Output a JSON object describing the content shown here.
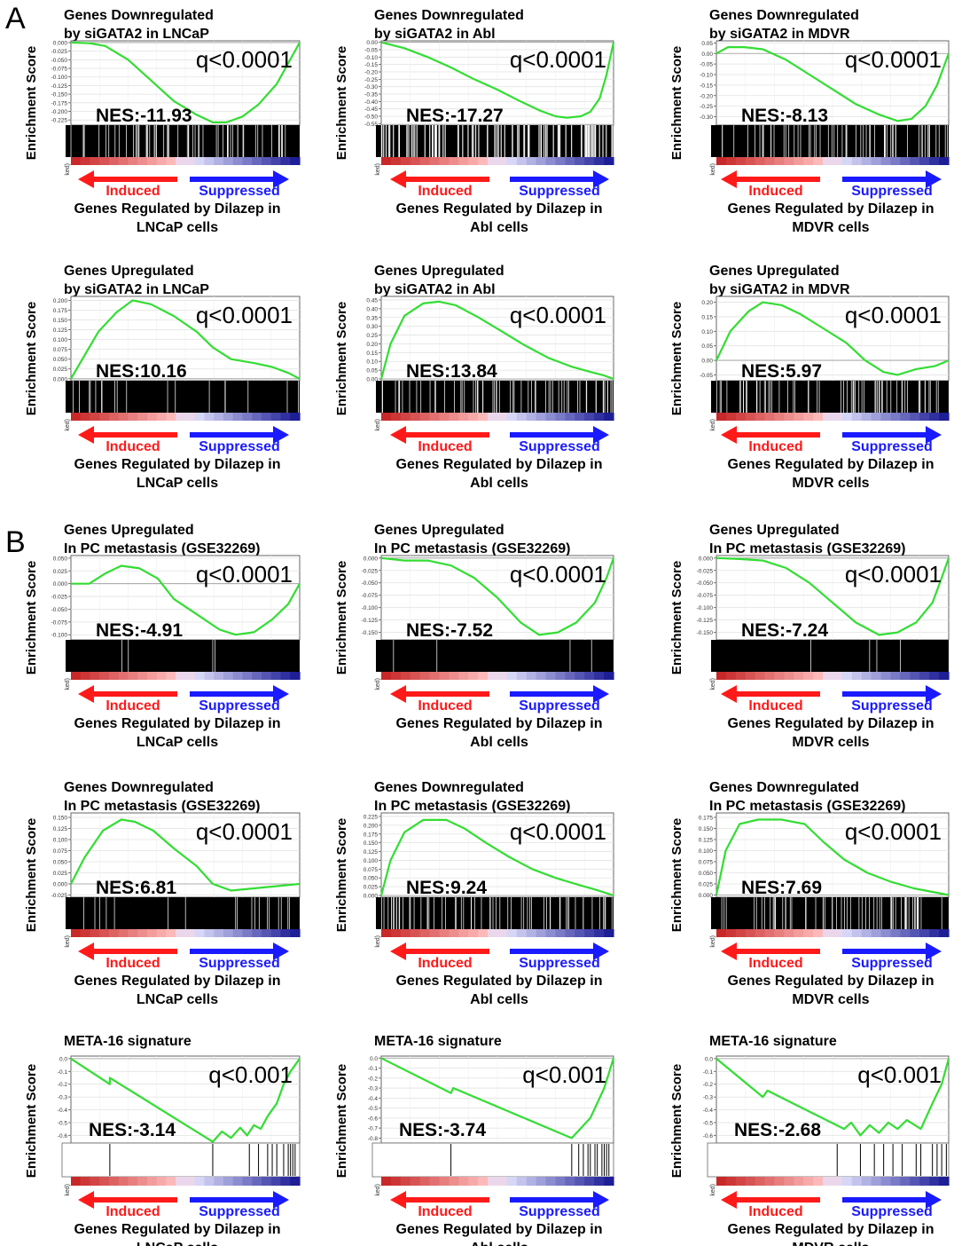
{
  "figure": {
    "section_labels": [
      "A",
      "B"
    ],
    "ylabel": "Enrichment Score",
    "rank_axis_stub": "ked)",
    "arrow_left_label": "Induced",
    "arrow_right_label": "Suppressed",
    "colors": {
      "curve": "#33dd33",
      "induced": "#ff1a1a",
      "suppressed": "#1a1aff",
      "hit_band": "#000000",
      "background": "#ffffff"
    }
  },
  "chart_data": [
    {
      "type": "line",
      "title_lines": [
        "Genes Downregulated",
        "by siGATA2 in LNCaP"
      ],
      "xlabel_lines": [
        "Genes Regulated by Dilazep in",
        "LNCaP cells"
      ],
      "ylabel": "Enrichment Score",
      "q": "q<0.0001",
      "nes": "NES:-11.93",
      "y_ticks": [
        "0.000",
        "-0.025",
        "-0.050",
        "-0.075",
        "-0.100",
        "-0.125",
        "-0.150",
        "-0.175",
        "-0.200",
        "-0.225"
      ],
      "ylim": [
        -0.24,
        0.005
      ],
      "curve": [
        [
          0,
          0
        ],
        [
          0.08,
          -0.002
        ],
        [
          0.15,
          -0.01
        ],
        [
          0.25,
          -0.05
        ],
        [
          0.35,
          -0.11
        ],
        [
          0.45,
          -0.17
        ],
        [
          0.55,
          -0.21
        ],
        [
          0.62,
          -0.232
        ],
        [
          0.68,
          -0.232
        ],
        [
          0.75,
          -0.215
        ],
        [
          0.82,
          -0.18
        ],
        [
          0.9,
          -0.12
        ],
        [
          0.95,
          -0.06
        ],
        [
          1,
          0
        ]
      ],
      "hits": "dense"
    },
    {
      "type": "line",
      "title_lines": [
        "Genes Downregulated",
        "by siGATA2 in Abl"
      ],
      "xlabel_lines": [
        "Genes Regulated by Dilazep in",
        "Abl cells"
      ],
      "ylabel": "Enrichment Score",
      "q": "q<0.0001",
      "nes": "NES:-17.27",
      "y_ticks": [
        "0.00",
        "-0.05",
        "-0.10",
        "-0.15",
        "-0.20",
        "-0.25",
        "-0.30",
        "-0.35",
        "-0.40",
        "-0.45",
        "-0.50",
        "-0.55"
      ],
      "ylim": [
        -0.56,
        0.01
      ],
      "curve": [
        [
          0,
          0
        ],
        [
          0.1,
          -0.04
        ],
        [
          0.2,
          -0.1
        ],
        [
          0.3,
          -0.17
        ],
        [
          0.4,
          -0.25
        ],
        [
          0.5,
          -0.32
        ],
        [
          0.6,
          -0.4
        ],
        [
          0.68,
          -0.46
        ],
        [
          0.75,
          -0.5
        ],
        [
          0.8,
          -0.51
        ],
        [
          0.86,
          -0.5
        ],
        [
          0.9,
          -0.47
        ],
        [
          0.94,
          -0.38
        ],
        [
          0.97,
          -0.22
        ],
        [
          1,
          0
        ]
      ],
      "hits": "sparse"
    },
    {
      "type": "line",
      "title_lines": [
        "Genes Downregulated",
        "by siGATA2 in MDVR"
      ],
      "xlabel_lines": [
        "Genes Regulated by Dilazep in",
        "MDVR cells"
      ],
      "ylabel": "Enrichment Score",
      "q": "q<0.0001",
      "nes": "NES:-8.13",
      "y_ticks": [
        "0.05",
        "0.00",
        "-0.05",
        "-0.10",
        "-0.15",
        "-0.20",
        "-0.25",
        "-0.30"
      ],
      "ylim": [
        -0.34,
        0.06
      ],
      "curve": [
        [
          0,
          0.0
        ],
        [
          0.05,
          0.03
        ],
        [
          0.12,
          0.03
        ],
        [
          0.2,
          0.02
        ],
        [
          0.3,
          -0.03
        ],
        [
          0.4,
          -0.1
        ],
        [
          0.5,
          -0.17
        ],
        [
          0.6,
          -0.24
        ],
        [
          0.7,
          -0.29
        ],
        [
          0.78,
          -0.32
        ],
        [
          0.84,
          -0.31
        ],
        [
          0.9,
          -0.25
        ],
        [
          0.95,
          -0.15
        ],
        [
          1,
          0.0
        ]
      ],
      "hits": "dense"
    },
    {
      "type": "line",
      "title_lines": [
        "Genes Upregulated",
        "by siGATA2 in LNCaP"
      ],
      "xlabel_lines": [
        "Genes Regulated by Dilazep in",
        "LNCaP cells"
      ],
      "ylabel": "Enrichment Score",
      "q": "q<0.0001",
      "nes": "NES:10.16",
      "y_ticks": [
        "0.200",
        "0.175",
        "0.150",
        "0.125",
        "0.100",
        "0.075",
        "0.050",
        "0.025",
        "0.000"
      ],
      "ylim": [
        -0.005,
        0.21
      ],
      "curve": [
        [
          0,
          0
        ],
        [
          0.05,
          0.05
        ],
        [
          0.12,
          0.12
        ],
        [
          0.2,
          0.17
        ],
        [
          0.27,
          0.2
        ],
        [
          0.35,
          0.19
        ],
        [
          0.45,
          0.16
        ],
        [
          0.55,
          0.12
        ],
        [
          0.62,
          0.08
        ],
        [
          0.7,
          0.05
        ],
        [
          0.8,
          0.04
        ],
        [
          0.88,
          0.03
        ],
        [
          0.95,
          0.015
        ],
        [
          1,
          0
        ]
      ],
      "hits": "medium"
    },
    {
      "type": "line",
      "title_lines": [
        "Genes Upregulated",
        "by siGATA2 in Abl"
      ],
      "xlabel_lines": [
        "Genes Regulated by Dilazep in",
        "Abl cells"
      ],
      "ylabel": "Enrichment Score",
      "q": "q<0.0001",
      "nes": "NES:13.84",
      "y_ticks": [
        "0.45",
        "0.40",
        "0.35",
        "0.30",
        "0.25",
        "0.20",
        "0.15",
        "0.10",
        "0.05",
        "0.00"
      ],
      "ylim": [
        -0.01,
        0.47
      ],
      "curve": [
        [
          0,
          0
        ],
        [
          0.04,
          0.2
        ],
        [
          0.1,
          0.36
        ],
        [
          0.18,
          0.43
        ],
        [
          0.25,
          0.44
        ],
        [
          0.32,
          0.42
        ],
        [
          0.42,
          0.35
        ],
        [
          0.52,
          0.27
        ],
        [
          0.62,
          0.19
        ],
        [
          0.72,
          0.12
        ],
        [
          0.82,
          0.07
        ],
        [
          0.9,
          0.04
        ],
        [
          0.96,
          0.02
        ],
        [
          1,
          0
        ]
      ],
      "hits": "dense"
    },
    {
      "type": "line",
      "title_lines": [
        "Genes Upregulated",
        "by siGATA2 in MDVR"
      ],
      "xlabel_lines": [
        "Genes Regulated by Dilazep in",
        "MDVR cells"
      ],
      "ylabel": "Enrichment Score",
      "q": "q<0.0001",
      "nes": "NES:5.97",
      "y_ticks": [
        "0.20",
        "0.15",
        "0.10",
        "0.05",
        "0.00",
        "-0.05"
      ],
      "ylim": [
        -0.07,
        0.22
      ],
      "curve": [
        [
          0,
          0
        ],
        [
          0.06,
          0.1
        ],
        [
          0.14,
          0.17
        ],
        [
          0.2,
          0.2
        ],
        [
          0.28,
          0.19
        ],
        [
          0.36,
          0.16
        ],
        [
          0.46,
          0.11
        ],
        [
          0.56,
          0.06
        ],
        [
          0.64,
          0.0
        ],
        [
          0.72,
          -0.04
        ],
        [
          0.78,
          -0.05
        ],
        [
          0.86,
          -0.03
        ],
        [
          0.94,
          -0.02
        ],
        [
          1,
          0
        ]
      ],
      "hits": "dense"
    },
    {
      "type": "line",
      "title_lines": [
        "Genes Upregulated",
        "In PC metastasis (GSE32269)"
      ],
      "xlabel_lines": [
        "Genes Regulated by Dilazep in",
        "LNCaP cells"
      ],
      "ylabel": "Enrichment Score",
      "q": "q<0.0001",
      "nes": "NES:-4.91",
      "y_ticks": [
        "0.050",
        "0.025",
        "0.000",
        "-0.025",
        "-0.050",
        "-0.075",
        "-0.100"
      ],
      "ylim": [
        -0.11,
        0.055
      ],
      "curve": [
        [
          0,
          0
        ],
        [
          0.08,
          0.0
        ],
        [
          0.15,
          0.02
        ],
        [
          0.22,
          0.035
        ],
        [
          0.3,
          0.03
        ],
        [
          0.38,
          0.01
        ],
        [
          0.45,
          -0.03
        ],
        [
          0.55,
          -0.06
        ],
        [
          0.65,
          -0.09
        ],
        [
          0.72,
          -0.1
        ],
        [
          0.8,
          -0.095
        ],
        [
          0.88,
          -0.07
        ],
        [
          0.95,
          -0.04
        ],
        [
          1,
          0
        ]
      ],
      "hits": "few"
    },
    {
      "type": "line",
      "title_lines": [
        "Genes Upregulated",
        "In PC metastasis (GSE32269)"
      ],
      "xlabel_lines": [
        "Genes Regulated by Dilazep in",
        "Abl cells"
      ],
      "ylabel": "Enrichment Score",
      "q": "q<0.0001",
      "nes": "NES:-7.52",
      "y_ticks": [
        "0.000",
        "-0.025",
        "-0.050",
        "-0.075",
        "-0.100",
        "-0.125",
        "-0.150"
      ],
      "ylim": [
        -0.165,
        0.005
      ],
      "curve": [
        [
          0,
          0
        ],
        [
          0.1,
          -0.005
        ],
        [
          0.2,
          -0.005
        ],
        [
          0.3,
          -0.015
        ],
        [
          0.4,
          -0.04
        ],
        [
          0.5,
          -0.08
        ],
        [
          0.6,
          -0.13
        ],
        [
          0.68,
          -0.155
        ],
        [
          0.76,
          -0.15
        ],
        [
          0.84,
          -0.13
        ],
        [
          0.92,
          -0.09
        ],
        [
          0.97,
          -0.04
        ],
        [
          1,
          0
        ]
      ],
      "hits": "few"
    },
    {
      "type": "line",
      "title_lines": [
        "Genes Upregulated",
        "In PC metastasis (GSE32269)"
      ],
      "xlabel_lines": [
        "Genes Regulated by Dilazep in",
        "MDVR cells"
      ],
      "ylabel": "Enrichment Score",
      "q": "q<0.0001",
      "nes": "NES:-7.24",
      "y_ticks": [
        "0.000",
        "-0.025",
        "-0.050",
        "-0.075",
        "-0.100",
        "-0.125",
        "-0.150"
      ],
      "ylim": [
        -0.165,
        0.005
      ],
      "curve": [
        [
          0,
          0
        ],
        [
          0.1,
          -0.002
        ],
        [
          0.2,
          -0.005
        ],
        [
          0.3,
          -0.02
        ],
        [
          0.4,
          -0.05
        ],
        [
          0.5,
          -0.09
        ],
        [
          0.6,
          -0.13
        ],
        [
          0.7,
          -0.155
        ],
        [
          0.78,
          -0.15
        ],
        [
          0.86,
          -0.13
        ],
        [
          0.93,
          -0.09
        ],
        [
          0.97,
          -0.04
        ],
        [
          1,
          0
        ]
      ],
      "hits": "few"
    },
    {
      "type": "line",
      "title_lines": [
        "Genes Downregulated",
        "In PC metastasis (GSE32269)"
      ],
      "xlabel_lines": [
        "Genes Regulated by Dilazep in",
        "LNCaP cells"
      ],
      "ylabel": "Enrichment Score",
      "q": "q<0.0001",
      "nes": "NES:6.81",
      "y_ticks": [
        "0.150",
        "0.125",
        "0.100",
        "0.075",
        "0.050",
        "0.025",
        "0.000",
        "-0.025"
      ],
      "ylim": [
        -0.03,
        0.16
      ],
      "curve": [
        [
          0,
          0
        ],
        [
          0.06,
          0.06
        ],
        [
          0.14,
          0.12
        ],
        [
          0.22,
          0.145
        ],
        [
          0.28,
          0.14
        ],
        [
          0.36,
          0.12
        ],
        [
          0.45,
          0.08
        ],
        [
          0.55,
          0.04
        ],
        [
          0.62,
          0.0
        ],
        [
          0.7,
          -0.015
        ],
        [
          0.8,
          -0.01
        ],
        [
          0.9,
          -0.005
        ],
        [
          1,
          0
        ]
      ],
      "hits": "medium"
    },
    {
      "type": "line",
      "title_lines": [
        "Genes Downregulated",
        "In PC metastasis (GSE32269)"
      ],
      "xlabel_lines": [
        "Genes Regulated by Dilazep in",
        "Abl cells"
      ],
      "ylabel": "Enrichment Score",
      "q": "q<0.0001",
      "nes": "NES:9.24",
      "y_ticks": [
        "0.225",
        "0.200",
        "0.175",
        "0.150",
        "0.125",
        "0.100",
        "0.075",
        "0.050",
        "0.025",
        "0.000"
      ],
      "ylim": [
        -0.005,
        0.235
      ],
      "curve": [
        [
          0,
          0
        ],
        [
          0.04,
          0.1
        ],
        [
          0.1,
          0.18
        ],
        [
          0.18,
          0.215
        ],
        [
          0.28,
          0.215
        ],
        [
          0.36,
          0.19
        ],
        [
          0.45,
          0.15
        ],
        [
          0.55,
          0.11
        ],
        [
          0.65,
          0.075
        ],
        [
          0.75,
          0.05
        ],
        [
          0.85,
          0.03
        ],
        [
          0.93,
          0.015
        ],
        [
          1,
          0
        ]
      ],
      "hits": "dense"
    },
    {
      "type": "line",
      "title_lines": [
        "Genes Downregulated",
        "In PC metastasis (GSE32269)"
      ],
      "xlabel_lines": [
        "Genes Regulated by Dilazep in",
        "MDVR cells"
      ],
      "ylabel": "Enrichment Score",
      "q": "q<0.0001",
      "nes": "NES:7.69",
      "y_ticks": [
        "0.175",
        "0.150",
        "0.125",
        "0.100",
        "0.075",
        "0.050",
        "0.025",
        "0.000"
      ],
      "ylim": [
        -0.005,
        0.185
      ],
      "curve": [
        [
          0,
          0
        ],
        [
          0.04,
          0.1
        ],
        [
          0.1,
          0.16
        ],
        [
          0.18,
          0.17
        ],
        [
          0.28,
          0.17
        ],
        [
          0.38,
          0.16
        ],
        [
          0.46,
          0.12
        ],
        [
          0.55,
          0.08
        ],
        [
          0.65,
          0.05
        ],
        [
          0.75,
          0.03
        ],
        [
          0.85,
          0.015
        ],
        [
          0.95,
          0.005
        ],
        [
          1,
          0
        ]
      ],
      "hits": "dense"
    },
    {
      "type": "line",
      "title_lines": [
        "META-16 signature"
      ],
      "xlabel_lines": [
        "Genes Regulated by Dilazep in",
        "LNCaP cells"
      ],
      "ylabel": "Enrichment Score",
      "q": "q<0.001",
      "nes": "NES:-3.14",
      "y_ticks": [
        "0.0",
        "-0.1",
        "-0.2",
        "-0.3",
        "-0.4",
        "-0.5",
        "-0.6"
      ],
      "ylim": [
        -0.66,
        0.02
      ],
      "curve": [
        [
          0,
          0
        ],
        [
          0.17,
          -0.2
        ],
        [
          0.17,
          -0.15
        ],
        [
          0.62,
          -0.65
        ],
        [
          0.66,
          -0.57
        ],
        [
          0.7,
          -0.62
        ],
        [
          0.74,
          -0.54
        ],
        [
          0.77,
          -0.6
        ],
        [
          0.8,
          -0.52
        ],
        [
          0.83,
          -0.55
        ],
        [
          0.86,
          -0.45
        ],
        [
          0.9,
          -0.35
        ],
        [
          0.93,
          -0.2
        ],
        [
          0.96,
          -0.1
        ],
        [
          1,
          0
        ]
      ],
      "hits": "meta"
    },
    {
      "type": "line",
      "title_lines": [
        "META-16 signature"
      ],
      "xlabel_lines": [
        "Genes Regulated by Dilazep in",
        "Abl cells"
      ],
      "ylabel": "Enrichment Score",
      "q": "q<0.001",
      "nes": "NES:-3.74",
      "y_ticks": [
        "0.0",
        "-0.1",
        "-0.2",
        "-0.3",
        "-0.4",
        "-0.5",
        "-0.6",
        "-0.7",
        "-0.8"
      ],
      "ylim": [
        -0.85,
        0.02
      ],
      "curve": [
        [
          0,
          0
        ],
        [
          0.3,
          -0.35
        ],
        [
          0.31,
          -0.3
        ],
        [
          0.82,
          -0.8
        ],
        [
          0.86,
          -0.7
        ],
        [
          0.9,
          -0.6
        ],
        [
          0.93,
          -0.45
        ],
        [
          0.96,
          -0.3
        ],
        [
          0.98,
          -0.15
        ],
        [
          1,
          0
        ]
      ],
      "hits": "meta"
    },
    {
      "type": "line",
      "title_lines": [
        "META-16 signature"
      ],
      "xlabel_lines": [
        "Genes Regulated by Dilazep in",
        "MDVR cells"
      ],
      "ylabel": "Enrichment Score",
      "q": "q<0.001",
      "nes": "NES:-2.68",
      "y_ticks": [
        "0.0",
        "-0.1",
        "-0.2",
        "-0.3",
        "-0.4",
        "-0.5",
        "-0.6"
      ],
      "ylim": [
        -0.66,
        0.02
      ],
      "curve": [
        [
          0,
          0
        ],
        [
          0.2,
          -0.3
        ],
        [
          0.22,
          -0.25
        ],
        [
          0.55,
          -0.55
        ],
        [
          0.58,
          -0.5
        ],
        [
          0.62,
          -0.6
        ],
        [
          0.66,
          -0.52
        ],
        [
          0.7,
          -0.58
        ],
        [
          0.74,
          -0.5
        ],
        [
          0.78,
          -0.55
        ],
        [
          0.82,
          -0.48
        ],
        [
          0.88,
          -0.55
        ],
        [
          0.93,
          -0.35
        ],
        [
          0.97,
          -0.2
        ],
        [
          1,
          0
        ]
      ],
      "hits": "meta"
    }
  ]
}
